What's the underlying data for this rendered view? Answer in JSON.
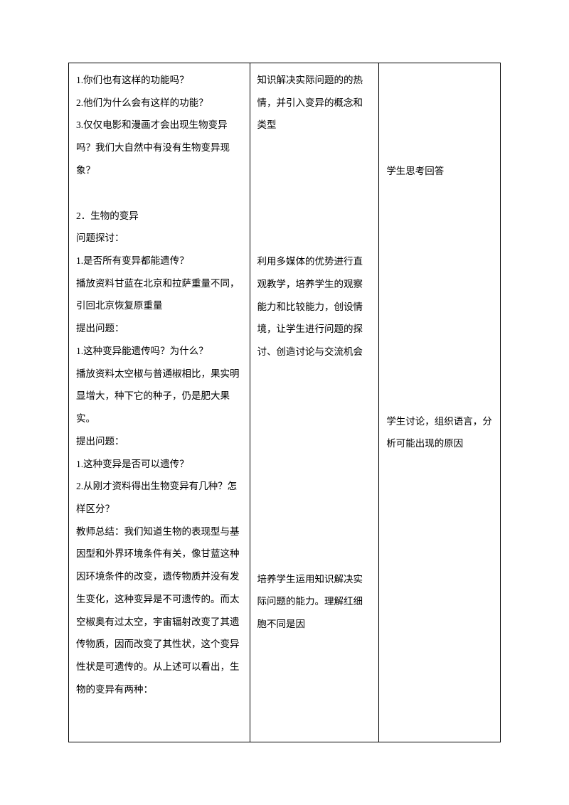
{
  "col1": {
    "q1": "1.你们也有这样的功能吗？",
    "q2": "2.他们为什么会有这样的功能？",
    "q3": "3.仅仅电影和漫画才会出现生物变异吗？我们大自然中有没有生物变异现象？",
    "section2_title": "2．生物的变异",
    "discuss_label": "问题探讨：",
    "d1": "1.是否所有变异都能遗传？",
    "d1_detail": "播放资料甘蓝在北京和拉萨重量不同，引回北京恢复原重量",
    "raise_q1": "提出问题：",
    "rq1": "1.这种变异能遗传吗？为什么？",
    "rq1_detail": "播放资料太空椒与普通椒相比，果实明显增大，种下它的种子，仍是肥大果实。",
    "raise_q2": "提出问题：",
    "rq2_1": "1.这种变异是否可以遗传？",
    "rq2_2": "2.从刚才资料得出生物变异有几种？怎样区分？",
    "teacher_summary": "教师总结：我们知道生物的表现型与基因型和外界环境条件有关，像甘蓝这种因环境条件的改变，遗传物质并没有发生变化，这种变异是不可遗传的。而太空椒奥有过太空，宇宙辐射改变了其遗传物质，因而改变了其性状，这个变异性状是可遗传的。从上述可以看出，生物的变异有两种："
  },
  "col2": {
    "para1": "知识解决实际问题的的热情，并引入变异的概念和类型",
    "para2": "利用多媒体的优势进行直观教学，培养学生的观察能力和比较能力，创设情境，让学生进行问题的探讨、创造讨论与交流机会",
    "para3": "培养学生运用知识解决实际问题的能力。理解红细胞不同是因"
  },
  "col3": {
    "para1": "学生思考回答",
    "para2": "学生讨论，组织语言，分析可能出现的原因"
  }
}
